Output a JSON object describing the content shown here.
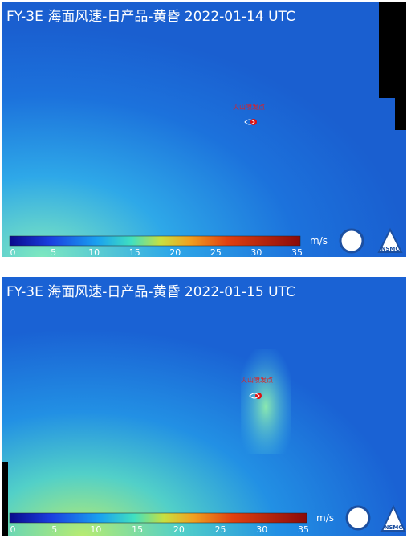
{
  "panels": [
    {
      "title": "FY-3E 海面风速-日产品-黄昏 2022-01-14 UTC",
      "marker_label": "火山喷发点",
      "colorbar": {
        "ticks": [
          0,
          5,
          10,
          15,
          20,
          25,
          30,
          35
        ],
        "unit": "m/s"
      },
      "logo_text": "NSMC"
    },
    {
      "title": "FY-3E 海面风速-日产品-黄昏 2022-01-15 UTC",
      "marker_label": "火山喷发点",
      "colorbar": {
        "ticks": [
          0,
          5,
          10,
          15,
          20,
          25,
          30,
          35
        ],
        "unit": "m/s"
      },
      "logo_text": "NSMC"
    }
  ]
}
